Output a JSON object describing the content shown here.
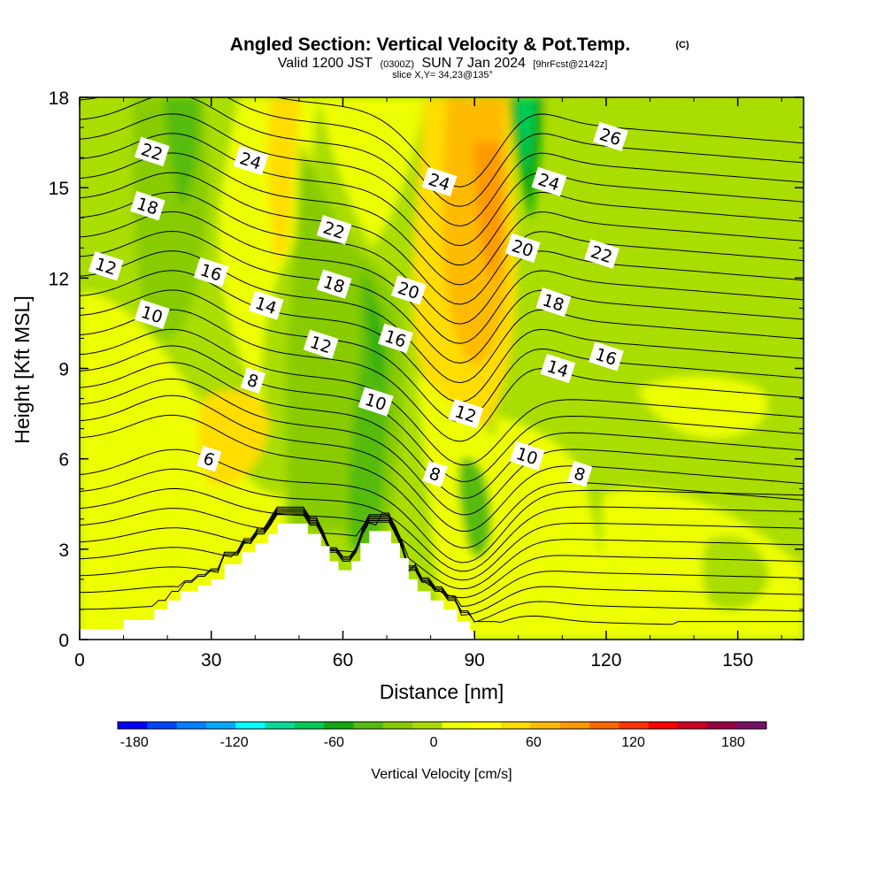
{
  "chart_data": {
    "type": "heatmap",
    "title": "Angled Section: Vertical Velocity & Pot.Temp.",
    "title_mark": "(C)",
    "subtitle": {
      "part1": "Valid 1200 JST",
      "part2": "(0300Z)",
      "part3": "SUN 7 Jan 2024",
      "part4": "[9hrFcst@2142z]"
    },
    "slice_label": "slice X,Y= 34,23@135°",
    "xlabel": "Distance [nm]",
    "ylabel": "Height [Kft MSL]",
    "xlim": [
      0,
      165
    ],
    "ylim": [
      0,
      18
    ],
    "x_ticks": [
      "0",
      "30",
      "60",
      "90",
      "120",
      "150"
    ],
    "y_ticks": [
      "0",
      "3",
      "6",
      "9",
      "12",
      "15",
      "18"
    ],
    "colorbar": {
      "label": "Vertical Velocity [cm/s]",
      "range": [
        -190,
        200
      ],
      "tick_labels": [
        "-180",
        "-120",
        "-60",
        "0",
        "60",
        "120",
        "180"
      ],
      "colors": [
        "#0000ff",
        "#0044ff",
        "#0080ff",
        "#00aaff",
        "#00ffff",
        "#00dd99",
        "#00cc55",
        "#11aa11",
        "#55bb11",
        "#88cc00",
        "#aadd00",
        "#eeff00",
        "#ffff00",
        "#ffdd00",
        "#ffbb00",
        "#ff9900",
        "#ff6600",
        "#ff3300",
        "#ff0000",
        "#cc0022",
        "#990044",
        "#771166"
      ]
    },
    "grid": false,
    "terrain_profile_x": [
      0,
      10,
      17,
      20,
      23,
      27,
      30,
      33,
      37,
      40,
      43,
      45,
      48,
      50,
      52,
      55,
      57,
      59,
      62,
      64,
      66,
      69,
      71,
      73,
      75,
      77,
      80,
      83,
      86,
      89,
      90
    ],
    "terrain_profile_kft": [
      0.35,
      0.65,
      1.0,
      1.3,
      1.6,
      1.8,
      2.0,
      2.5,
      2.9,
      3.2,
      3.5,
      3.85,
      3.85,
      3.85,
      3.5,
      3.1,
      2.6,
      2.3,
      2.6,
      3.2,
      3.6,
      3.6,
      3.2,
      2.7,
      2.0,
      1.6,
      1.3,
      1.0,
      0.6,
      0.3,
      0.3
    ],
    "theta_contour_labels": [
      {
        "text": "22",
        "x": 16.5,
        "y": 16.2
      },
      {
        "text": "24",
        "x": 39.0,
        "y": 15.9
      },
      {
        "text": "24",
        "x": 82.0,
        "y": 15.2
      },
      {
        "text": "26",
        "x": 121.0,
        "y": 16.7
      },
      {
        "text": "24",
        "x": 107.0,
        "y": 15.2
      },
      {
        "text": "18",
        "x": 15.5,
        "y": 14.4
      },
      {
        "text": "22",
        "x": 58.0,
        "y": 13.6
      },
      {
        "text": "20",
        "x": 101.0,
        "y": 13.0
      },
      {
        "text": "22",
        "x": 119.0,
        "y": 12.8
      },
      {
        "text": "12",
        "x": 6.0,
        "y": 12.4
      },
      {
        "text": "16",
        "x": 30.0,
        "y": 12.2
      },
      {
        "text": "18",
        "x": 58.0,
        "y": 11.8
      },
      {
        "text": "20",
        "x": 75.0,
        "y": 11.6
      },
      {
        "text": "14",
        "x": 42.5,
        "y": 11.1
      },
      {
        "text": "18",
        "x": 108.0,
        "y": 11.2
      },
      {
        "text": "10",
        "x": 16.5,
        "y": 10.8
      },
      {
        "text": "16",
        "x": 72.0,
        "y": 10.0
      },
      {
        "text": "12",
        "x": 55.0,
        "y": 9.8
      },
      {
        "text": "16",
        "x": 120.0,
        "y": 9.4
      },
      {
        "text": "14",
        "x": 109.0,
        "y": 9.0
      },
      {
        "text": "8",
        "x": 39.5,
        "y": 8.6
      },
      {
        "text": "10",
        "x": 67.5,
        "y": 7.9
      },
      {
        "text": "12",
        "x": 88.0,
        "y": 7.5
      },
      {
        "text": "10",
        "x": 102.0,
        "y": 6.1
      },
      {
        "text": "6",
        "x": 29.5,
        "y": 6.0
      },
      {
        "text": "8",
        "x": 81.0,
        "y": 5.5
      },
      {
        "text": "8",
        "x": 114.0,
        "y": 5.5
      }
    ]
  }
}
